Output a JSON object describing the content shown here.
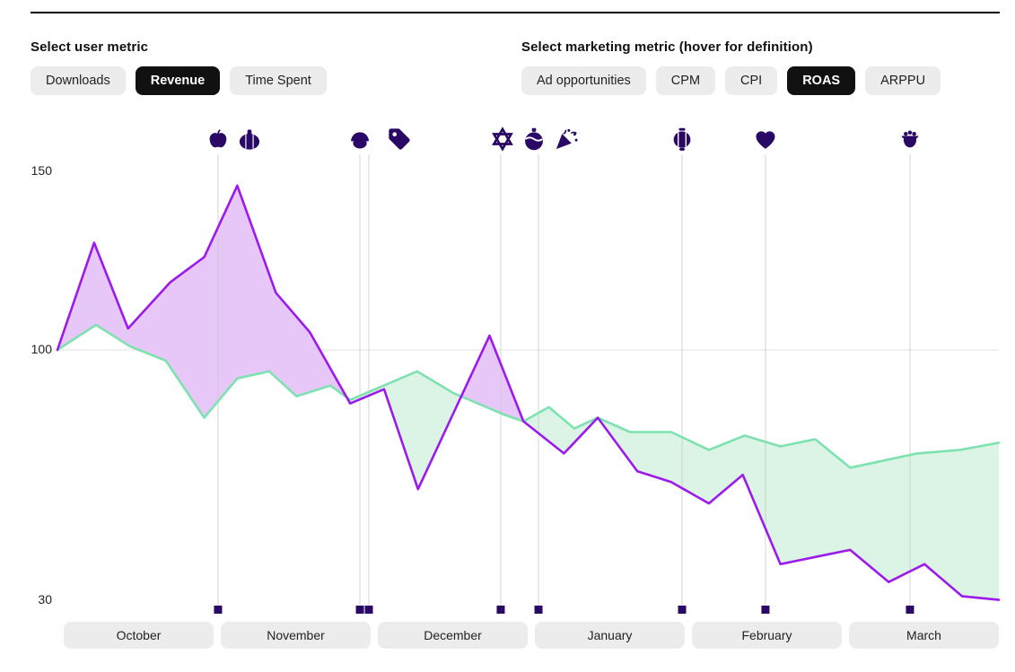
{
  "user_metric": {
    "label": "Select user metric",
    "options": [
      {
        "label": "Downloads",
        "selected": false
      },
      {
        "label": "Revenue",
        "selected": true
      },
      {
        "label": "Time Spent",
        "selected": false
      }
    ]
  },
  "marketing_metric": {
    "label": "Select marketing metric (hover for definition)",
    "options": [
      {
        "label": "Ad opportunities",
        "selected": false
      },
      {
        "label": "CPM",
        "selected": false
      },
      {
        "label": "CPI",
        "selected": false
      },
      {
        "label": "ROAS",
        "selected": true
      },
      {
        "label": "ARPPU",
        "selected": false
      }
    ]
  },
  "colors": {
    "revenue": "#9C1AEB",
    "roas": "#7DE2B0",
    "revenue_fill": "#E7C7F8",
    "roas_fill": "#DBF4E5",
    "event": "#2A0866",
    "grid": "#E3E3E3",
    "grid_strong": "#C9C9C9",
    "pill_bg": "#ECECEC",
    "pill_selected_bg": "#111111"
  },
  "chart_data": {
    "type": "line",
    "x_unit": "timeline fraction from start of October (0) to end of March (1)",
    "months": [
      "October",
      "November",
      "December",
      "January",
      "February",
      "March"
    ],
    "y_ticks": [
      150,
      100,
      30
    ],
    "y_gridlines": [
      100
    ],
    "ylim": [
      28,
      155
    ],
    "legend_position": "none",
    "series": [
      {
        "name": "Revenue",
        "color": "#9C1AEB",
        "fill": "#E7C7F8",
        "points": [
          [
            0.0,
            100
          ],
          [
            0.039,
            130
          ],
          [
            0.075,
            106
          ],
          [
            0.12,
            119
          ],
          [
            0.156,
            126
          ],
          [
            0.191,
            146
          ],
          [
            0.232,
            116
          ],
          [
            0.268,
            105
          ],
          [
            0.311,
            85
          ],
          [
            0.347,
            89
          ],
          [
            0.383,
            61
          ],
          [
            0.459,
            104
          ],
          [
            0.495,
            80
          ],
          [
            0.538,
            71
          ],
          [
            0.574,
            81
          ],
          [
            0.616,
            66
          ],
          [
            0.652,
            63
          ],
          [
            0.692,
            57
          ],
          [
            0.728,
            65
          ],
          [
            0.768,
            40
          ],
          [
            0.805,
            42
          ],
          [
            0.842,
            44
          ],
          [
            0.883,
            35
          ],
          [
            0.921,
            40
          ],
          [
            0.961,
            31
          ],
          [
            1.0,
            30
          ]
        ]
      },
      {
        "name": "ROAS",
        "color": "#7DE2B0",
        "fill": "#DBF4E5",
        "points": [
          [
            0.0,
            100
          ],
          [
            0.041,
            107
          ],
          [
            0.077,
            101
          ],
          [
            0.115,
            97
          ],
          [
            0.156,
            81
          ],
          [
            0.191,
            92
          ],
          [
            0.225,
            94
          ],
          [
            0.254,
            87
          ],
          [
            0.29,
            90
          ],
          [
            0.311,
            86
          ],
          [
            0.382,
            94
          ],
          [
            0.42,
            88
          ],
          [
            0.473,
            82
          ],
          [
            0.495,
            80
          ],
          [
            0.522,
            84
          ],
          [
            0.549,
            78
          ],
          [
            0.574,
            81
          ],
          [
            0.608,
            77
          ],
          [
            0.652,
            77
          ],
          [
            0.692,
            72
          ],
          [
            0.73,
            76
          ],
          [
            0.768,
            73
          ],
          [
            0.805,
            75
          ],
          [
            0.842,
            67
          ],
          [
            0.913,
            71
          ],
          [
            0.959,
            72
          ],
          [
            1.0,
            74
          ]
        ]
      }
    ],
    "event_markers": [
      0.1706,
      0.3213,
      0.3308,
      0.4709,
      0.511,
      0.6635,
      0.7521,
      0.9056
    ],
    "event_icons": [
      {
        "name": "apple-icon",
        "t": 0.1706
      },
      {
        "name": "pumpkin-icon",
        "t": 0.204
      },
      {
        "name": "turkey-icon",
        "t": 0.3213
      },
      {
        "name": "tag-icon",
        "t": 0.3632
      },
      {
        "name": "star-of-david-icon",
        "t": 0.4728
      },
      {
        "name": "ornament-icon",
        "t": 0.5062
      },
      {
        "name": "party-popper-icon",
        "t": 0.5405
      },
      {
        "name": "lantern-icon",
        "t": 0.6635
      },
      {
        "name": "heart-icon",
        "t": 0.7521
      },
      {
        "name": "pot-icon",
        "t": 0.9056
      }
    ]
  }
}
